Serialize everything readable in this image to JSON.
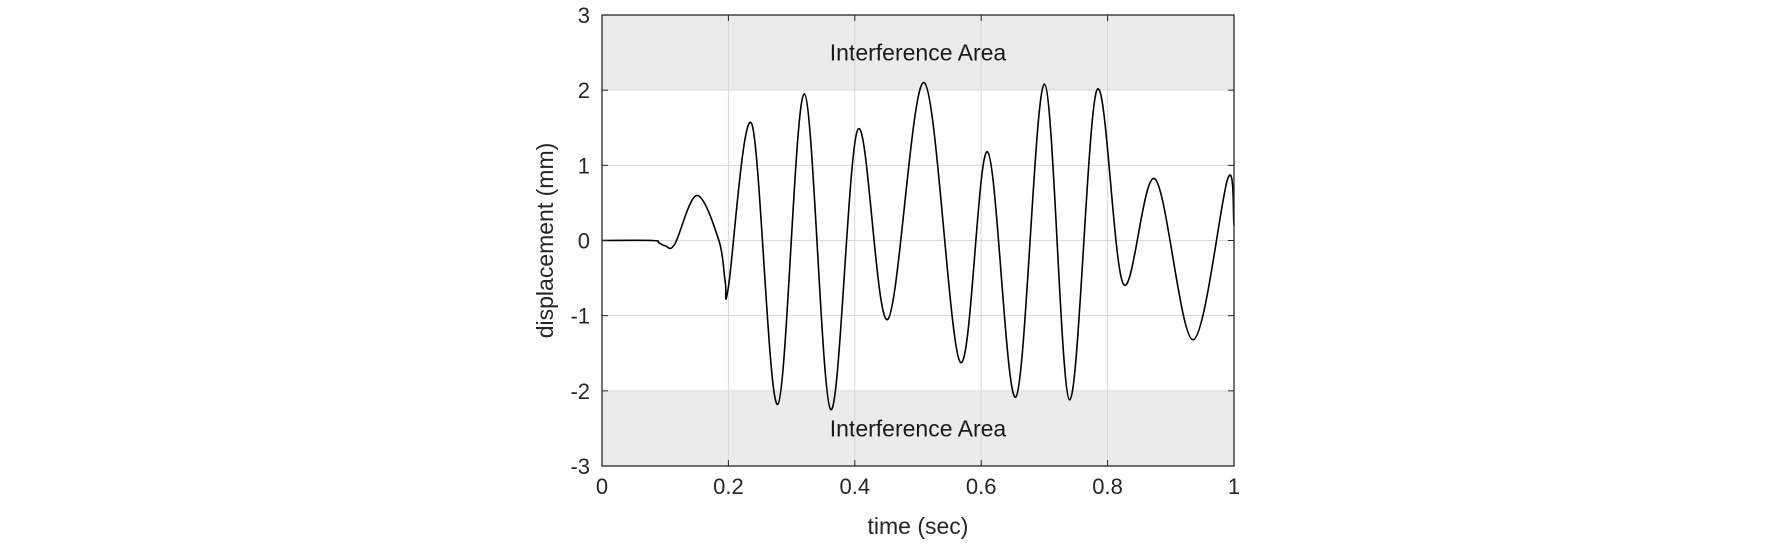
{
  "chart_data": {
    "type": "line",
    "title": "",
    "xlabel": "time (sec)",
    "ylabel": "displacement (mm)",
    "xlim": [
      0,
      1
    ],
    "ylim": [
      -3,
      3
    ],
    "xticks": [
      0,
      0.2,
      0.4,
      0.6,
      0.8,
      1
    ],
    "xtick_labels": [
      "0",
      "0.2",
      "0.4",
      "0.6",
      "0.8",
      "1"
    ],
    "yticks": [
      -3,
      -2,
      -1,
      0,
      1,
      2,
      3
    ],
    "ytick_labels": [
      "-3",
      "-2",
      "-1",
      "0",
      "1",
      "2",
      "3"
    ],
    "grid": true,
    "legend": "none",
    "bands": [
      {
        "label": "Interference Area",
        "y_range": [
          2,
          3
        ],
        "color": "#ebebeb"
      },
      {
        "label": "Interference Area",
        "y_range": [
          -3,
          -2
        ],
        "color": "#ebebeb"
      }
    ],
    "series": [
      {
        "color": "#000000",
        "points": [
          [
            0,
            0
          ],
          [
            0.08,
            0
          ],
          [
            0.09,
            -0.03
          ],
          [
            0.1,
            -0.07
          ],
          [
            0.115,
            -0.05
          ],
          [
            0.15,
            0.6
          ],
          [
            0.185,
            0.0
          ],
          [
            0.195,
            -0.55
          ],
          [
            0.2,
            -0.62
          ],
          [
            0.237,
            1.55
          ],
          [
            0.278,
            -2.18
          ],
          [
            0.32,
            1.95
          ],
          [
            0.362,
            -2.25
          ],
          [
            0.405,
            1.48
          ],
          [
            0.452,
            -1.05
          ],
          [
            0.51,
            2.1
          ],
          [
            0.567,
            -1.62
          ],
          [
            0.61,
            1.18
          ],
          [
            0.655,
            -2.08
          ],
          [
            0.7,
            2.08
          ],
          [
            0.74,
            -2.12
          ],
          [
            0.783,
            2.0
          ],
          [
            0.825,
            -0.58
          ],
          [
            0.875,
            0.82
          ],
          [
            0.935,
            -1.32
          ],
          [
            0.99,
            0.82
          ],
          [
            1.0,
            0.2
          ]
        ]
      }
    ]
  }
}
